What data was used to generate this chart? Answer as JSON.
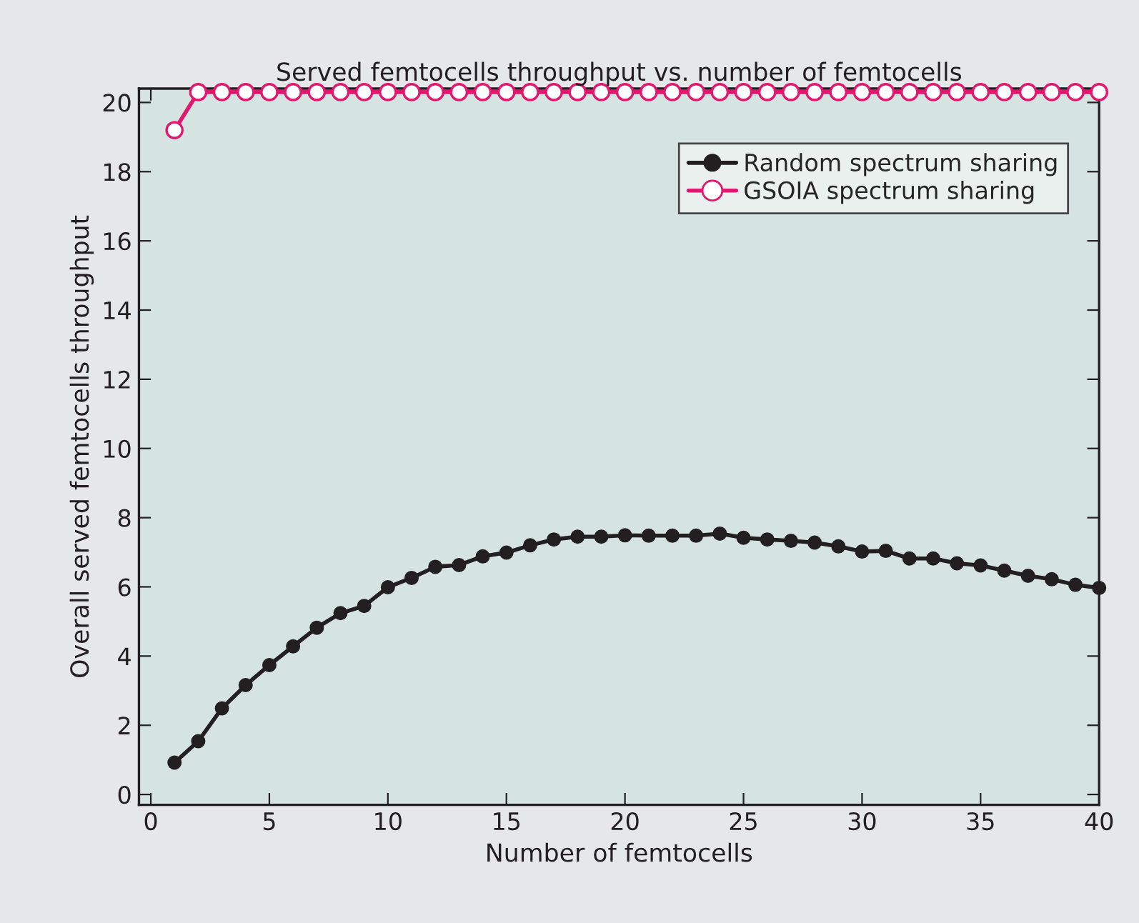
{
  "chart_data": {
    "type": "line",
    "title": "Served femtocells throughput vs. number of femtocells",
    "xlabel": "Number of femtocells",
    "ylabel": "Overall served femtocells throughput",
    "x": [
      1,
      2,
      3,
      4,
      5,
      6,
      7,
      8,
      9,
      10,
      11,
      12,
      13,
      14,
      15,
      16,
      17,
      18,
      19,
      20,
      21,
      22,
      23,
      24,
      25,
      26,
      27,
      28,
      29,
      30,
      31,
      32,
      33,
      34,
      35,
      36,
      37,
      38,
      39,
      40
    ],
    "series": [
      {
        "name": "Random spectrum sharing",
        "color": "#231f20",
        "marker": "circle",
        "values": [
          0.92,
          1.54,
          2.49,
          3.16,
          3.74,
          4.28,
          4.82,
          5.24,
          5.45,
          5.99,
          6.26,
          6.58,
          6.63,
          6.88,
          6.99,
          7.2,
          7.37,
          7.45,
          7.45,
          7.49,
          7.48,
          7.48,
          7.48,
          7.54,
          7.42,
          7.37,
          7.33,
          7.28,
          7.17,
          7.02,
          7.04,
          6.82,
          6.82,
          6.68,
          6.62,
          6.47,
          6.32,
          6.22,
          6.06,
          5.97
        ]
      },
      {
        "name": "GSOIA spectrum sharing",
        "color": "#e0186f",
        "marker": "open circle",
        "values": [
          19.2,
          20.3,
          20.3,
          20.3,
          20.3,
          20.3,
          20.3,
          20.3,
          20.3,
          20.3,
          20.3,
          20.3,
          20.3,
          20.3,
          20.3,
          20.3,
          20.3,
          20.3,
          20.3,
          20.3,
          20.3,
          20.3,
          20.3,
          20.3,
          20.3,
          20.3,
          20.3,
          20.3,
          20.3,
          20.3,
          20.3,
          20.3,
          20.3,
          20.3,
          20.3,
          20.3,
          20.3,
          20.3,
          20.3,
          20.3
        ]
      }
    ],
    "xlim": [
      -0.5,
      40
    ],
    "xticks": [
      0,
      5,
      10,
      15,
      20,
      25,
      30,
      35,
      40
    ],
    "ylim": [
      -0.3,
      20.4
    ],
    "yticks": [
      0,
      2,
      4,
      6,
      8,
      10,
      12,
      14,
      16,
      18,
      20
    ],
    "legend": "top right",
    "grid": false,
    "line_style": "solid"
  }
}
